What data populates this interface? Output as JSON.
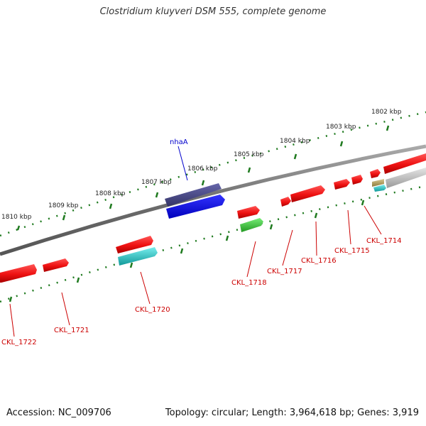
{
  "title": "Clostridium kluyveri DSM 555, complete genome",
  "footer": {
    "accession": "Accession: NC_009706",
    "topology": "Topology: circular; Length: 3,964,618 bp; Genes: 3,919"
  },
  "scale_labels": [
    "1810 kbp",
    "1809 kbp",
    "1808 kbp",
    "1807 kbp",
    "1806 kbp",
    "1805 kbp",
    "1804 kbp",
    "1803 kbp",
    "1802 kbp"
  ],
  "genes": {
    "nhaA": {
      "label": "nhaA",
      "color": "#0000cc"
    },
    "CKL_1714": {
      "label": "CKL_1714",
      "color": "#cc0000"
    },
    "CKL_1715": {
      "label": "CKL_1715",
      "color": "#cc0000"
    },
    "CKL_1716": {
      "label": "CKL_1716",
      "color": "#cc0000"
    },
    "CKL_1717": {
      "label": "CKL_1717",
      "color": "#cc0000"
    },
    "CKL_1718": {
      "label": "CKL_1718",
      "color": "#cc0000"
    },
    "CKL_1720": {
      "label": "CKL_1720",
      "color": "#cc0000"
    },
    "CKL_1721": {
      "label": "CKL_1721",
      "color": "#cc0000"
    },
    "CKL_1722": {
      "label": "CKL_1722",
      "color": "#cc0000"
    }
  },
  "colors": {
    "backbone": "#7a7a7a",
    "scale_ticks": "#1f7a1f",
    "cds_red": "#ee1111",
    "cds_green": "#33bb33",
    "cds_cyan": "#22cccc",
    "cds_blue": "#0000ee",
    "cds_purple": "#444488",
    "cds_gray": "#bbbbbb"
  }
}
